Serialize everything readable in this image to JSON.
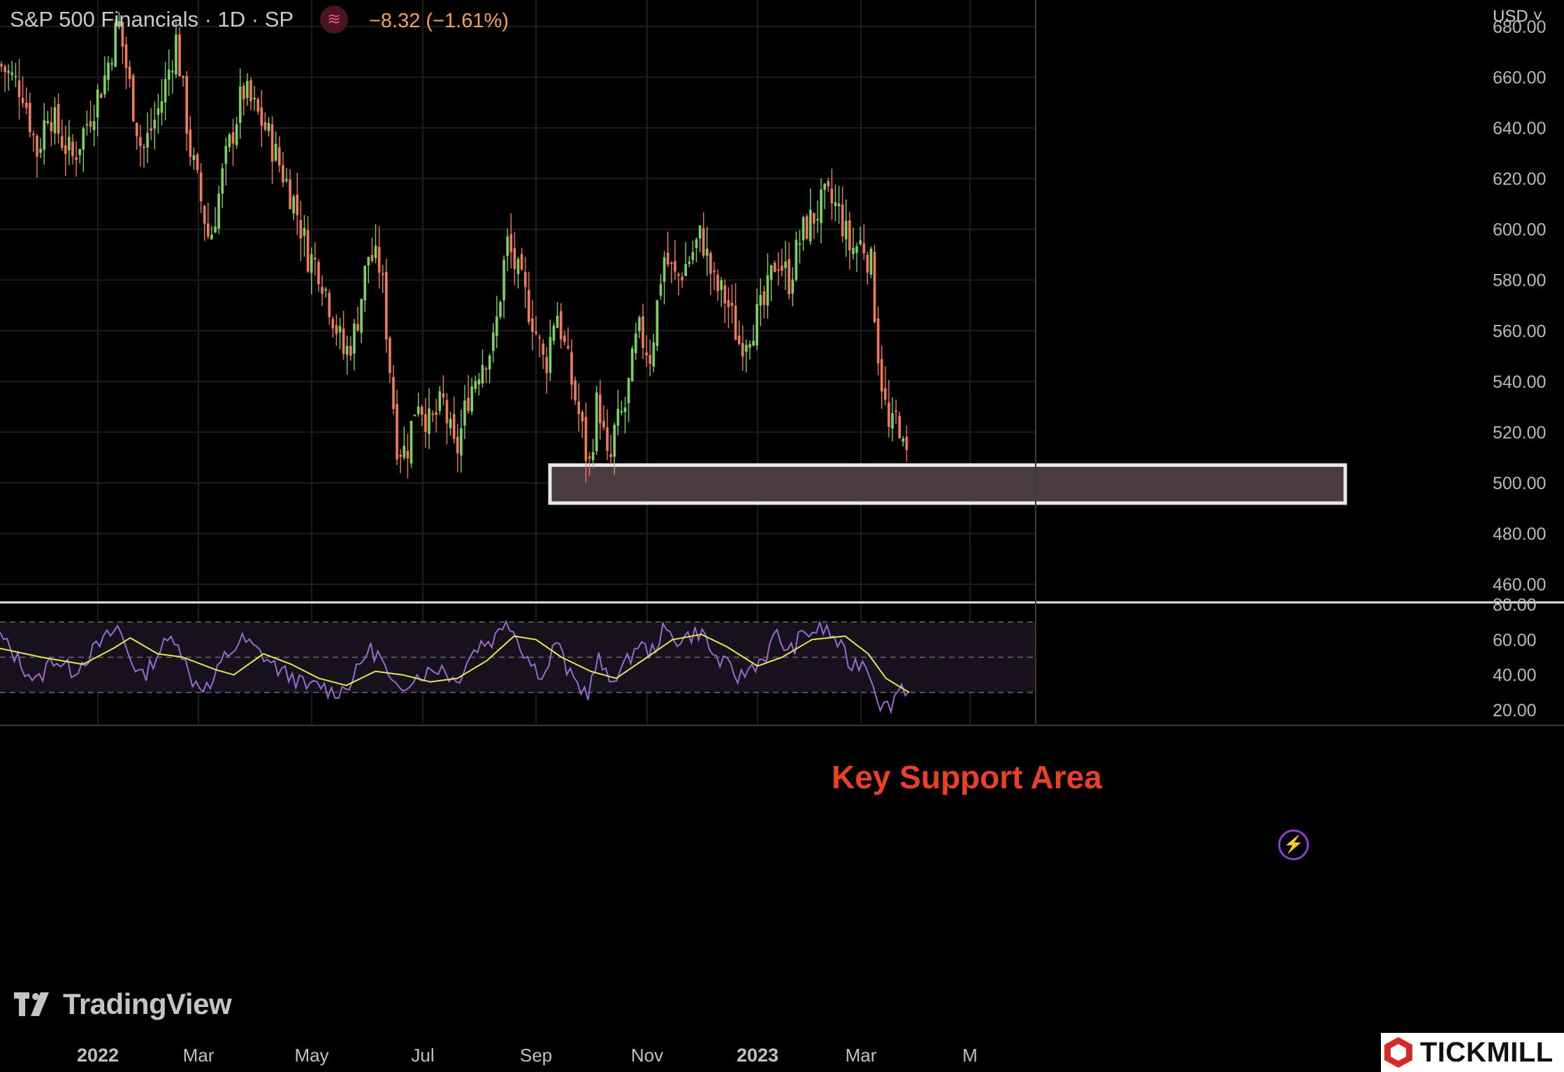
{
  "header": {
    "title": "S&P 500 Financials · 1D · SP",
    "change": "−8.32 (−1.61%)",
    "indicator_icon": "wave-icon",
    "currency": "USD"
  },
  "annotation": {
    "text": "Key Support Area",
    "color": "#e8402a"
  },
  "branding": {
    "tradingview": "TradingView",
    "tickmill": "TICKMILL"
  },
  "colors": {
    "up": "#7fd063",
    "down": "#f07a5a",
    "rsi": "#9b6ad0",
    "rsi_ma": "#e3e655",
    "support_zone": "#4a3c40",
    "support_border": "#e8e8e8"
  },
  "chart_data": [
    {
      "type": "candlestick",
      "x_ticks": [
        "2022",
        "Mar",
        "May",
        "Jul",
        "Sep",
        "Nov",
        "2023",
        "Mar",
        "M"
      ],
      "y_ticks": [
        "680.00",
        "660.00",
        "640.00",
        "620.00",
        "600.00",
        "580.00",
        "560.00",
        "540.00",
        "520.00",
        "500.00",
        "480.00",
        "460.00"
      ],
      "ylim": [
        455,
        683
      ],
      "support_zone": [
        492,
        507
      ],
      "last_close": 507,
      "close_path": [
        {
          "date": "2021-11-15",
          "close": 665
        },
        {
          "date": "2021-11-26",
          "close": 655
        },
        {
          "date": "2021-12-03",
          "close": 630
        },
        {
          "date": "2021-12-08",
          "close": 648
        },
        {
          "date": "2021-12-15",
          "close": 635
        },
        {
          "date": "2021-12-20",
          "close": 628
        },
        {
          "date": "2022-01-05",
          "close": 660
        },
        {
          "date": "2022-01-13",
          "close": 682
        },
        {
          "date": "2022-01-20",
          "close": 655
        },
        {
          "date": "2022-01-27",
          "close": 630
        },
        {
          "date": "2022-02-07",
          "close": 650
        },
        {
          "date": "2022-02-16",
          "close": 675
        },
        {
          "date": "2022-02-24",
          "close": 632
        },
        {
          "date": "2022-03-07",
          "close": 595
        },
        {
          "date": "2022-03-15",
          "close": 625
        },
        {
          "date": "2022-03-25",
          "close": 655
        },
        {
          "date": "2022-04-06",
          "close": 640
        },
        {
          "date": "2022-04-14",
          "close": 625
        },
        {
          "date": "2022-04-22",
          "close": 610
        },
        {
          "date": "2022-04-29",
          "close": 590
        },
        {
          "date": "2022-05-05",
          "close": 585
        },
        {
          "date": "2022-05-12",
          "close": 568
        },
        {
          "date": "2022-05-19",
          "close": 550
        },
        {
          "date": "2022-05-25",
          "close": 560
        },
        {
          "date": "2022-06-01",
          "close": 590
        },
        {
          "date": "2022-06-08",
          "close": 585
        },
        {
          "date": "2022-06-13",
          "close": 545
        },
        {
          "date": "2022-06-17",
          "close": 515
        },
        {
          "date": "2022-06-22",
          "close": 512
        },
        {
          "date": "2022-06-28",
          "close": 535
        },
        {
          "date": "2022-07-05",
          "close": 522
        },
        {
          "date": "2022-07-12",
          "close": 532
        },
        {
          "date": "2022-07-19",
          "close": 510
        },
        {
          "date": "2022-07-26",
          "close": 535
        },
        {
          "date": "2022-08-02",
          "close": 548
        },
        {
          "date": "2022-08-09",
          "close": 555
        },
        {
          "date": "2022-08-16",
          "close": 595
        },
        {
          "date": "2022-08-23",
          "close": 580
        },
        {
          "date": "2022-08-30",
          "close": 565
        },
        {
          "date": "2022-09-06",
          "close": 545
        },
        {
          "date": "2022-09-12",
          "close": 570
        },
        {
          "date": "2022-09-19",
          "close": 545
        },
        {
          "date": "2022-09-26",
          "close": 522
        },
        {
          "date": "2022-09-30",
          "close": 505
        },
        {
          "date": "2022-10-05",
          "close": 535
        },
        {
          "date": "2022-10-11",
          "close": 503
        },
        {
          "date": "2022-10-14",
          "close": 520
        },
        {
          "date": "2022-10-20",
          "close": 530
        },
        {
          "date": "2022-10-27",
          "close": 560
        },
        {
          "date": "2022-11-03",
          "close": 550
        },
        {
          "date": "2022-11-10",
          "close": 590
        },
        {
          "date": "2022-11-17",
          "close": 580
        },
        {
          "date": "2022-11-24",
          "close": 588
        },
        {
          "date": "2022-12-01",
          "close": 598
        },
        {
          "date": "2022-12-08",
          "close": 578
        },
        {
          "date": "2022-12-15",
          "close": 572
        },
        {
          "date": "2022-12-22",
          "close": 555
        },
        {
          "date": "2022-12-29",
          "close": 562
        },
        {
          "date": "2023-01-05",
          "close": 570
        },
        {
          "date": "2023-01-12",
          "close": 590
        },
        {
          "date": "2023-01-19",
          "close": 580
        },
        {
          "date": "2023-01-26",
          "close": 598
        },
        {
          "date": "2023-02-02",
          "close": 605
        },
        {
          "date": "2023-02-09",
          "close": 612
        },
        {
          "date": "2023-02-16",
          "close": 608
        },
        {
          "date": "2023-02-23",
          "close": 592
        },
        {
          "date": "2023-03-02",
          "close": 595
        },
        {
          "date": "2023-03-07",
          "close": 585
        },
        {
          "date": "2023-03-10",
          "close": 555
        },
        {
          "date": "2023-03-13",
          "close": 538
        },
        {
          "date": "2023-03-17",
          "close": 518
        },
        {
          "date": "2023-03-22",
          "close": 528
        },
        {
          "date": "2023-03-24",
          "close": 513
        },
        {
          "date": "2023-03-28",
          "close": 507
        }
      ]
    },
    {
      "type": "line",
      "name": "RSI",
      "y_ticks": [
        "80.00",
        "60.00",
        "40.00",
        "20.00"
      ],
      "ylim": [
        13,
        80
      ],
      "bands": [
        30,
        50,
        70
      ],
      "series": [
        {
          "points": [
            {
              "date": "2021-11-15",
              "rsi": 62
            },
            {
              "date": "2021-11-26",
              "rsi": 45
            },
            {
              "date": "2021-12-03",
              "rsi": 35
            },
            {
              "date": "2021-12-10",
              "rsi": 50
            },
            {
              "date": "2021-12-20",
              "rsi": 42
            },
            {
              "date": "2022-01-05",
              "rsi": 60
            },
            {
              "date": "2022-01-13",
              "rsi": 67
            },
            {
              "date": "2022-01-20",
              "rsi": 50
            },
            {
              "date": "2022-01-27",
              "rsi": 38
            },
            {
              "date": "2022-02-07",
              "rsi": 55
            },
            {
              "date": "2022-02-16",
              "rsi": 63
            },
            {
              "date": "2022-02-24",
              "rsi": 38
            },
            {
              "date": "2022-03-07",
              "rsi": 32
            },
            {
              "date": "2022-03-15",
              "rsi": 50
            },
            {
              "date": "2022-03-25",
              "rsi": 60
            },
            {
              "date": "2022-04-06",
              "rsi": 50
            },
            {
              "date": "2022-04-14",
              "rsi": 42
            },
            {
              "date": "2022-04-22",
              "rsi": 38
            },
            {
              "date": "2022-04-29",
              "rsi": 32
            },
            {
              "date": "2022-05-05",
              "rsi": 35
            },
            {
              "date": "2022-05-12",
              "rsi": 30
            },
            {
              "date": "2022-05-19",
              "rsi": 32
            },
            {
              "date": "2022-05-25",
              "rsi": 40
            },
            {
              "date": "2022-06-01",
              "rsi": 55
            },
            {
              "date": "2022-06-08",
              "rsi": 50
            },
            {
              "date": "2022-06-13",
              "rsi": 35
            },
            {
              "date": "2022-06-17",
              "rsi": 30
            },
            {
              "date": "2022-06-24",
              "rsi": 38
            },
            {
              "date": "2022-07-05",
              "rsi": 42
            },
            {
              "date": "2022-07-12",
              "rsi": 45
            },
            {
              "date": "2022-07-19",
              "rsi": 35
            },
            {
              "date": "2022-07-26",
              "rsi": 50
            },
            {
              "date": "2022-08-02",
              "rsi": 58
            },
            {
              "date": "2022-08-09",
              "rsi": 60
            },
            {
              "date": "2022-08-16",
              "rsi": 73
            },
            {
              "date": "2022-08-23",
              "rsi": 58
            },
            {
              "date": "2022-08-30",
              "rsi": 45
            },
            {
              "date": "2022-09-06",
              "rsi": 40
            },
            {
              "date": "2022-09-12",
              "rsi": 60
            },
            {
              "date": "2022-09-19",
              "rsi": 40
            },
            {
              "date": "2022-09-26",
              "rsi": 32
            },
            {
              "date": "2022-09-30",
              "rsi": 30
            },
            {
              "date": "2022-10-05",
              "rsi": 50
            },
            {
              "date": "2022-10-11",
              "rsi": 35
            },
            {
              "date": "2022-10-14",
              "rsi": 40
            },
            {
              "date": "2022-10-20",
              "rsi": 45
            },
            {
              "date": "2022-10-27",
              "rsi": 58
            },
            {
              "date": "2022-11-03",
              "rsi": 52
            },
            {
              "date": "2022-11-10",
              "rsi": 65
            },
            {
              "date": "2022-11-17",
              "rsi": 60
            },
            {
              "date": "2022-11-24",
              "rsi": 62
            },
            {
              "date": "2022-12-01",
              "rsi": 65
            },
            {
              "date": "2022-12-08",
              "rsi": 50
            },
            {
              "date": "2022-12-15",
              "rsi": 45
            },
            {
              "date": "2022-12-22",
              "rsi": 38
            },
            {
              "date": "2022-12-29",
              "rsi": 45
            },
            {
              "date": "2023-01-05",
              "rsi": 50
            },
            {
              "date": "2023-01-12",
              "rsi": 63
            },
            {
              "date": "2023-01-19",
              "rsi": 52
            },
            {
              "date": "2023-01-26",
              "rsi": 62
            },
            {
              "date": "2023-02-02",
              "rsi": 65
            },
            {
              "date": "2023-02-09",
              "rsi": 66
            },
            {
              "date": "2023-02-16",
              "rsi": 58
            },
            {
              "date": "2023-02-23",
              "rsi": 45
            },
            {
              "date": "2023-03-02",
              "rsi": 48
            },
            {
              "date": "2023-03-07",
              "rsi": 40
            },
            {
              "date": "2023-03-10",
              "rsi": 28
            },
            {
              "date": "2023-03-13",
              "rsi": 22
            },
            {
              "date": "2023-03-17",
              "rsi": 22
            },
            {
              "date": "2023-03-22",
              "rsi": 32
            },
            {
              "date": "2023-03-24",
              "rsi": 34
            },
            {
              "date": "2023-03-28",
              "rsi": 30
            }
          ]
        },
        {
          "points": [
            {
              "date": "2021-11-15",
              "rsi": 55
            },
            {
              "date": "2021-12-05",
              "rsi": 50
            },
            {
              "date": "2021-12-25",
              "rsi": 46
            },
            {
              "date": "2022-01-10",
              "rsi": 55
            },
            {
              "date": "2022-01-20",
              "rsi": 61
            },
            {
              "date": "2022-02-05",
              "rsi": 52
            },
            {
              "date": "2022-02-20",
              "rsi": 50
            },
            {
              "date": "2022-03-10",
              "rsi": 43
            },
            {
              "date": "2022-03-20",
              "rsi": 40
            },
            {
              "date": "2022-04-05",
              "rsi": 52
            },
            {
              "date": "2022-04-20",
              "rsi": 46
            },
            {
              "date": "2022-05-05",
              "rsi": 38
            },
            {
              "date": "2022-05-20",
              "rsi": 34
            },
            {
              "date": "2022-06-05",
              "rsi": 42
            },
            {
              "date": "2022-06-20",
              "rsi": 40
            },
            {
              "date": "2022-07-05",
              "rsi": 36
            },
            {
              "date": "2022-07-20",
              "rsi": 38
            },
            {
              "date": "2022-08-05",
              "rsi": 48
            },
            {
              "date": "2022-08-20",
              "rsi": 62
            },
            {
              "date": "2022-09-01",
              "rsi": 60
            },
            {
              "date": "2022-09-15",
              "rsi": 50
            },
            {
              "date": "2022-10-01",
              "rsi": 42
            },
            {
              "date": "2022-10-15",
              "rsi": 38
            },
            {
              "date": "2022-11-01",
              "rsi": 50
            },
            {
              "date": "2022-11-15",
              "rsi": 60
            },
            {
              "date": "2022-12-01",
              "rsi": 63
            },
            {
              "date": "2022-12-15",
              "rsi": 56
            },
            {
              "date": "2023-01-01",
              "rsi": 45
            },
            {
              "date": "2023-01-15",
              "rsi": 50
            },
            {
              "date": "2023-02-01",
              "rsi": 60
            },
            {
              "date": "2023-02-20",
              "rsi": 62
            },
            {
              "date": "2023-03-05",
              "rsi": 52
            },
            {
              "date": "2023-03-15",
              "rsi": 38
            },
            {
              "date": "2023-03-28",
              "rsi": 30
            }
          ]
        }
      ]
    }
  ]
}
